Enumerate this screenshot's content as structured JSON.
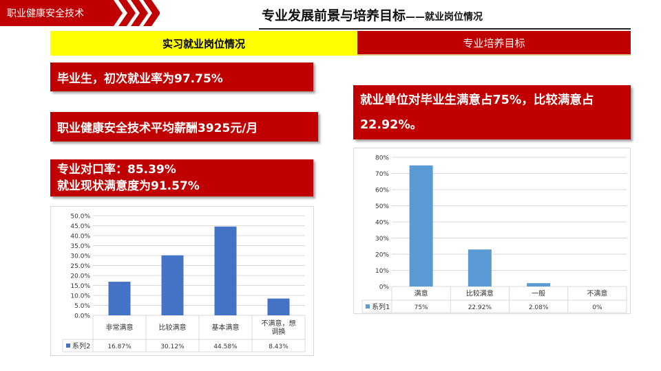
{
  "header": {
    "banner_text": "职业健康安全技术",
    "title_main": "专业发展前景与培养目标",
    "title_sub": "——就业岗位情况"
  },
  "tabs": [
    {
      "label": "实习就业岗位情况",
      "active": true
    },
    {
      "label": "专业培养目标",
      "active": false
    }
  ],
  "stats": {
    "employment_rate": "毕业生，初次就业率为97.75%",
    "avg_salary": "职业健康安全技术平均薪酬3925元/月",
    "match_rate": "专业对口率：85.39%",
    "satisfaction": "就业现状满意度为91.57%",
    "employer_line1": "就业单位对毕业生满意占75%，比较满意占",
    "employer_line2": "22.92%。"
  },
  "colors": {
    "brand_red": "#c00000",
    "tab_yellow": "#ffff00",
    "bar_blue_dark": "#4472c4",
    "bar_blue_light": "#5b9bd5"
  },
  "chart_data": [
    {
      "type": "bar",
      "categories": [
        "非常满意",
        "比较满意",
        "基本满意",
        "不满意，想调换"
      ],
      "series": [
        {
          "name": "系列2",
          "values": [
            16.87,
            30.12,
            44.58,
            8.43
          ]
        }
      ],
      "value_labels": [
        "16.87%",
        "30.12%",
        "44.58%",
        "8.43%"
      ],
      "ylim": [
        0,
        50
      ],
      "yticks": [
        0,
        5,
        10,
        15,
        20,
        25,
        30,
        35,
        40,
        45,
        50
      ],
      "ytick_labels": [
        "0.0%",
        "5.0%",
        "10.0%",
        "15.0%",
        "20.0%",
        "25.0%",
        "30.0%",
        "35.0%",
        "40.0%",
        "45.0%",
        "50.0%"
      ],
      "grid": true,
      "data_table": true
    },
    {
      "type": "bar",
      "categories": [
        "满意",
        "比较满意",
        "一般",
        "不满意"
      ],
      "series": [
        {
          "name": "系列1",
          "values": [
            75,
            22.92,
            2.08,
            0
          ]
        }
      ],
      "value_labels": [
        "75%",
        "22.92%",
        "2.08%",
        "0%"
      ],
      "ylim": [
        0,
        80
      ],
      "yticks": [
        0,
        10,
        20,
        30,
        40,
        50,
        60,
        70,
        80
      ],
      "ytick_labels": [
        "0%",
        "10%",
        "20%",
        "30%",
        "40%",
        "50%",
        "60%",
        "70%",
        "80%"
      ],
      "grid": true,
      "data_table": true
    }
  ]
}
